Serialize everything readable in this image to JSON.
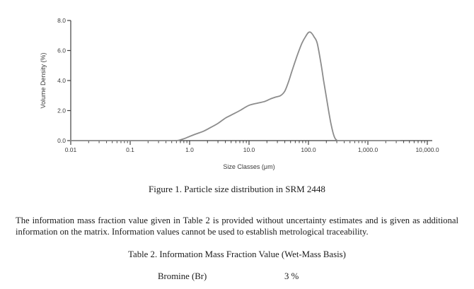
{
  "figure": {
    "caption": "Figure 1.  Particle size distribution in SRM 2448"
  },
  "chart_data": {
    "type": "line",
    "title": "",
    "xlabel": "Size Classes (μm)",
    "ylabel": "Volume Density (%)",
    "x_scale": "log",
    "xlim": [
      0.01,
      10000
    ],
    "ylim": [
      0,
      8
    ],
    "grid": false,
    "legend": "none",
    "axis_color": "#3f3f3f",
    "label_color": "#3a3a3a",
    "x_ticks": [
      {
        "value": 0.01,
        "label": "0.01"
      },
      {
        "value": 0.1,
        "label": "0.1"
      },
      {
        "value": 1,
        "label": "1.0"
      },
      {
        "value": 10,
        "label": "10.0"
      },
      {
        "value": 100,
        "label": "100.0"
      },
      {
        "value": 1000,
        "label": "1,000.0"
      },
      {
        "value": 10000,
        "label": "10,000.0"
      }
    ],
    "y_ticks": [
      {
        "value": 0,
        "label": "0.0"
      },
      {
        "value": 2,
        "label": "2.0"
      },
      {
        "value": 4,
        "label": "4.0"
      },
      {
        "value": 6,
        "label": "6.0"
      },
      {
        "value": 8,
        "label": "8.0"
      }
    ],
    "series": [
      {
        "name": "volume-density-distribution",
        "color": "#8c8c8c",
        "points": [
          [
            0.01,
            0
          ],
          [
            0.05,
            0
          ],
          [
            0.1,
            0
          ],
          [
            0.2,
            0
          ],
          [
            0.35,
            0
          ],
          [
            0.45,
            0
          ],
          [
            0.55,
            0
          ],
          [
            0.65,
            0.02
          ],
          [
            0.8,
            0.12
          ],
          [
            1.0,
            0.28
          ],
          [
            1.3,
            0.45
          ],
          [
            1.7,
            0.62
          ],
          [
            2.2,
            0.85
          ],
          [
            3,
            1.15
          ],
          [
            4,
            1.5
          ],
          [
            5,
            1.7
          ],
          [
            7,
            2.0
          ],
          [
            10,
            2.35
          ],
          [
            14,
            2.5
          ],
          [
            18,
            2.6
          ],
          [
            23,
            2.78
          ],
          [
            28,
            2.9
          ],
          [
            34,
            3.0
          ],
          [
            40,
            3.3
          ],
          [
            46,
            3.9
          ],
          [
            52,
            4.55
          ],
          [
            60,
            5.3
          ],
          [
            68,
            5.9
          ],
          [
            78,
            6.5
          ],
          [
            90,
            6.95
          ],
          [
            100,
            7.2
          ],
          [
            110,
            7.2
          ],
          [
            125,
            6.9
          ],
          [
            140,
            6.5
          ],
          [
            160,
            5.3
          ],
          [
            180,
            4.0
          ],
          [
            200,
            2.9
          ],
          [
            220,
            1.9
          ],
          [
            240,
            1.1
          ],
          [
            260,
            0.5
          ],
          [
            280,
            0.15
          ],
          [
            300,
            0.03
          ],
          [
            330,
            0
          ],
          [
            600,
            0
          ],
          [
            1200,
            0
          ],
          [
            2200,
            0
          ],
          [
            3400,
            0
          ]
        ]
      }
    ]
  },
  "paragraph": "The information mass fraction value given in Table 2 is provided without uncertainty estimates and is given as additional information on the matrix.  Information values cannot be used to establish metrological traceability.",
  "table2": {
    "caption": "Table 2. Information Mass Fraction Value (Wet-Mass Basis)",
    "rows": [
      {
        "analyte": "Bromine (Br)",
        "value": "3 %"
      }
    ]
  }
}
